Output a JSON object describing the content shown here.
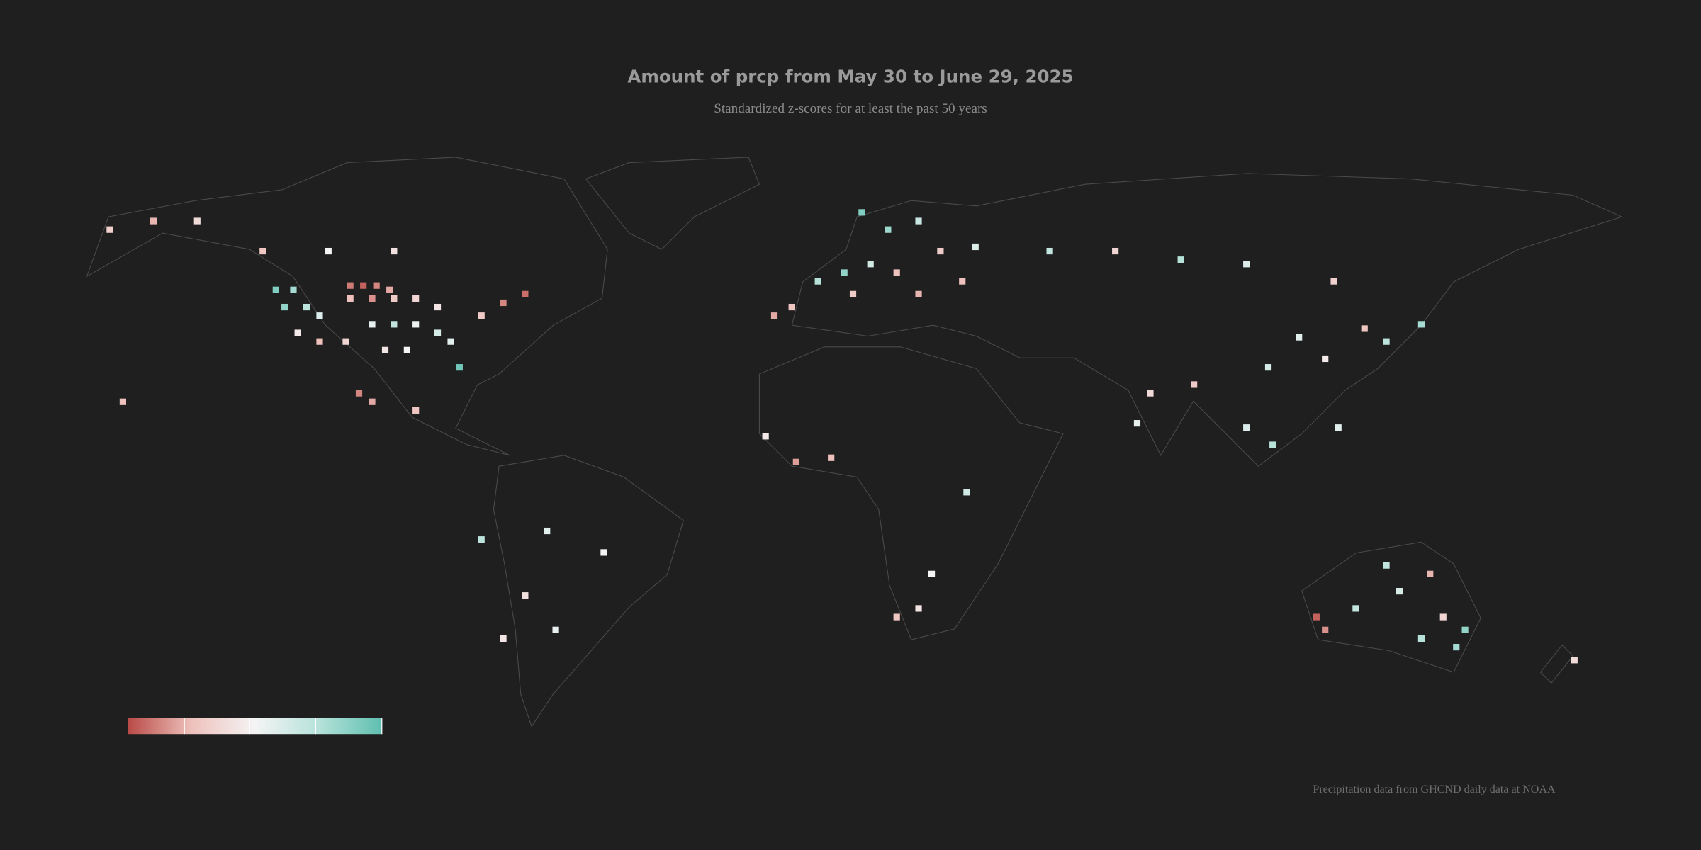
{
  "title": "Amount of prcp from May 30 to June 29, 2025",
  "subtitle": "Standardized z-scores for at least the past 50 years",
  "source": "Precipitation data from GHCND daily data at NOAA",
  "color_scale": {
    "domain": [
      -2,
      2
    ],
    "colors": [
      "#b94a46",
      "#eec1bc",
      "#f4f4f4",
      "#b6e2da",
      "#5fbfb0"
    ]
  },
  "cells": [
    [
      -105,
      47,
      -1.6
    ],
    [
      -102,
      47,
      -1.8
    ],
    [
      -99,
      47,
      -1.5
    ],
    [
      -96,
      46,
      -1.2
    ],
    [
      -105,
      44,
      -1.0
    ],
    [
      -100,
      44,
      -1.4
    ],
    [
      -95,
      44,
      -0.8
    ],
    [
      -90,
      44,
      -0.6
    ],
    [
      -85,
      42,
      -0.3
    ],
    [
      -122,
      46,
      1.6
    ],
    [
      -118,
      46,
      1.2
    ],
    [
      -120,
      42,
      1.4
    ],
    [
      -115,
      42,
      0.9
    ],
    [
      -112,
      40,
      0.4
    ],
    [
      -117,
      36,
      -0.2
    ],
    [
      -112,
      34,
      -1.0
    ],
    [
      -106,
      34,
      -0.6
    ],
    [
      -100,
      38,
      0.2
    ],
    [
      -95,
      38,
      0.8
    ],
    [
      -90,
      38,
      0.1
    ],
    [
      -85,
      36,
      0.5
    ],
    [
      -97,
      32,
      -0.3
    ],
    [
      -92,
      32,
      0.0
    ],
    [
      -82,
      34,
      0.3
    ],
    [
      -80,
      28,
      1.8
    ],
    [
      -75,
      40,
      -0.8
    ],
    [
      -70,
      43,
      -1.5
    ],
    [
      -65,
      45,
      -1.7
    ],
    [
      -125,
      55,
      -0.9
    ],
    [
      -140,
      62,
      -0.5
    ],
    [
      -150,
      62,
      -1.1
    ],
    [
      -160,
      60,
      -0.7
    ],
    [
      -110,
      55,
      0.0
    ],
    [
      -95,
      55,
      -0.4
    ],
    [
      -103,
      22,
      -1.5
    ],
    [
      -100,
      20,
      -1.2
    ],
    [
      -90,
      18,
      -0.9
    ],
    [
      -157,
      20,
      -1.0
    ],
    [
      -60,
      -10,
      0.3
    ],
    [
      -47,
      -15,
      0.0
    ],
    [
      -65,
      -25,
      -0.4
    ],
    [
      -58,
      -33,
      0.2
    ],
    [
      -75,
      -12,
      0.9
    ],
    [
      -70,
      -35,
      -0.3
    ],
    [
      -8,
      40,
      -1.2
    ],
    [
      -4,
      42,
      -0.9
    ],
    [
      2,
      48,
      1.0
    ],
    [
      8,
      50,
      1.4
    ],
    [
      14,
      52,
      0.6
    ],
    [
      20,
      50,
      -1.0
    ],
    [
      10,
      45,
      -0.8
    ],
    [
      25,
      45,
      -1.1
    ],
    [
      18,
      60,
      1.3
    ],
    [
      25,
      62,
      0.7
    ],
    [
      12,
      64,
      1.6
    ],
    [
      30,
      55,
      -0.8
    ],
    [
      38,
      56,
      0.4
    ],
    [
      35,
      48,
      -1.0
    ],
    [
      55,
      55,
      0.8
    ],
    [
      70,
      55,
      -0.6
    ],
    [
      85,
      53,
      1.0
    ],
    [
      100,
      52,
      0.4
    ],
    [
      120,
      48,
      -0.7
    ],
    [
      112,
      35,
      0.3
    ],
    [
      118,
      30,
      -0.2
    ],
    [
      105,
      28,
      0.5
    ],
    [
      132,
      34,
      0.9
    ],
    [
      140,
      38,
      1.2
    ],
    [
      127,
      37,
      -0.9
    ],
    [
      78,
      22,
      -0.5
    ],
    [
      75,
      15,
      0.2
    ],
    [
      88,
      24,
      -0.8
    ],
    [
      100,
      14,
      0.4
    ],
    [
      106,
      10,
      1.0
    ],
    [
      121,
      14,
      0.3
    ],
    [
      -10,
      12,
      -0.2
    ],
    [
      5,
      7,
      -1.0
    ],
    [
      -3,
      6,
      -1.3
    ],
    [
      20,
      -30,
      -0.9
    ],
    [
      25,
      -28,
      -0.3
    ],
    [
      36,
      -1,
      0.6
    ],
    [
      28,
      -20,
      0.0
    ],
    [
      116,
      -30,
      -1.8
    ],
    [
      118,
      -33,
      -1.4
    ],
    [
      125,
      -28,
      0.8
    ],
    [
      135,
      -24,
      0.5
    ],
    [
      145,
      -30,
      -0.6
    ],
    [
      150,
      -33,
      1.4
    ],
    [
      148,
      -37,
      1.2
    ],
    [
      140,
      -35,
      1.0
    ],
    [
      142,
      -20,
      -1.1
    ],
    [
      132,
      -18,
      0.8
    ],
    [
      175,
      -40,
      -0.5
    ]
  ]
}
